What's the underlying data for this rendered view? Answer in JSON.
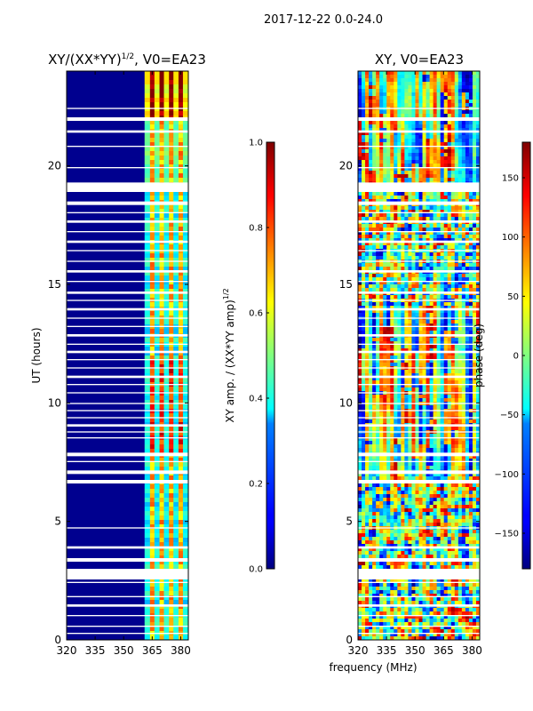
{
  "suptitle": "2017-12-22 0.0-24.0",
  "xlabel_shared": "frequency (MHz)",
  "colors": {
    "amp_background": "#00008f",
    "gap": "#ffffff",
    "frame": "#000000"
  },
  "chart_data": [
    {
      "type": "heatmap",
      "title_prefix": "XY/(XX*YY)",
      "title_sup": "1/2",
      "title_suffix": ", V0=EA23",
      "xlabel": "",
      "ylabel": "UT (hours)",
      "xlim": [
        320,
        384
      ],
      "ylim": [
        0,
        24
      ],
      "xticks": [
        320,
        335,
        350,
        365,
        380
      ],
      "yticks": [
        0,
        5,
        10,
        15,
        20
      ],
      "colormap": "jet",
      "colorbar": {
        "label_prefix": "XY amp. / (XX*YY amp)",
        "label_sup": "1/2",
        "range": [
          0,
          1
        ],
        "ticks": [
          "0.0",
          "0.2",
          "0.4",
          "0.6",
          "0.8",
          "1.0"
        ]
      },
      "active_band_mhz": [
        361,
        384
      ],
      "active_channel_centers_mhz": [
        365,
        370,
        375,
        380
      ],
      "data_gaps_ut_hours": [
        [
          0.25,
          0.3
        ],
        [
          0.55,
          0.6
        ],
        [
          1.0,
          1.05
        ],
        [
          1.4,
          1.5
        ],
        [
          1.8,
          1.85
        ],
        [
          2.4,
          2.45
        ],
        [
          2.55,
          3.0
        ],
        [
          3.3,
          3.45
        ],
        [
          3.85,
          3.95
        ],
        [
          4.7,
          4.75
        ],
        [
          6.6,
          6.75
        ],
        [
          7.0,
          7.15
        ],
        [
          7.5,
          7.55
        ],
        [
          7.75,
          7.9
        ],
        [
          8.5,
          8.55
        ],
        [
          8.75,
          8.8
        ],
        [
          9.0,
          9.1
        ],
        [
          9.35,
          9.4
        ],
        [
          9.65,
          9.7
        ],
        [
          9.95,
          10.0
        ],
        [
          10.4,
          10.45
        ],
        [
          10.75,
          10.8
        ],
        [
          11.05,
          11.15
        ],
        [
          11.45,
          11.5
        ],
        [
          11.8,
          11.85
        ],
        [
          12.1,
          12.2
        ],
        [
          12.45,
          12.5
        ],
        [
          12.8,
          12.9
        ],
        [
          13.2,
          13.25
        ],
        [
          13.55,
          13.6
        ],
        [
          13.9,
          14.0
        ],
        [
          14.3,
          14.35
        ],
        [
          14.6,
          14.7
        ],
        [
          15.1,
          15.15
        ],
        [
          15.5,
          15.6
        ],
        [
          15.95,
          16.0
        ],
        [
          16.4,
          16.45
        ],
        [
          16.75,
          16.85
        ],
        [
          17.2,
          17.25
        ],
        [
          17.6,
          17.7
        ],
        [
          18.0,
          18.05
        ],
        [
          18.35,
          18.5
        ],
        [
          18.9,
          19.3
        ],
        [
          19.9,
          19.95
        ],
        [
          20.8,
          20.85
        ],
        [
          21.4,
          21.5
        ],
        [
          21.9,
          22.05
        ],
        [
          22.4,
          22.45
        ]
      ]
    },
    {
      "type": "heatmap",
      "title": "XY, V0=EA23",
      "xlabel": "frequency (MHz)",
      "ylabel": "",
      "xlim": [
        320,
        384
      ],
      "ylim": [
        0,
        24
      ],
      "xticks": [
        320,
        335,
        350,
        365,
        380
      ],
      "yticks": [
        0,
        5,
        10,
        15,
        20
      ],
      "colormap": "jet",
      "colorbar": {
        "label": "phase (deg)",
        "range": [
          -180,
          180
        ],
        "ticks": [
          "150",
          "100",
          "50",
          "0",
          "−50",
          "−100",
          "−150"
        ]
      },
      "data_gaps_ut_hours": [
        [
          0.25,
          0.3
        ],
        [
          0.55,
          0.6
        ],
        [
          1.0,
          1.05
        ],
        [
          1.4,
          1.5
        ],
        [
          1.8,
          1.85
        ],
        [
          2.4,
          2.45
        ],
        [
          2.55,
          3.0
        ],
        [
          3.3,
          3.45
        ],
        [
          3.85,
          3.95
        ],
        [
          4.7,
          4.75
        ],
        [
          6.6,
          6.75
        ],
        [
          7.0,
          7.15
        ],
        [
          7.5,
          7.55
        ],
        [
          7.75,
          7.9
        ],
        [
          8.5,
          8.55
        ],
        [
          8.75,
          8.8
        ],
        [
          9.0,
          9.1
        ],
        [
          9.35,
          9.4
        ],
        [
          9.65,
          9.7
        ],
        [
          9.95,
          10.0
        ],
        [
          10.4,
          10.45
        ],
        [
          10.75,
          10.8
        ],
        [
          11.05,
          11.15
        ],
        [
          11.45,
          11.5
        ],
        [
          11.8,
          11.85
        ],
        [
          12.1,
          12.2
        ],
        [
          12.45,
          12.5
        ],
        [
          12.8,
          12.9
        ],
        [
          13.2,
          13.25
        ],
        [
          13.55,
          13.6
        ],
        [
          13.9,
          14.0
        ],
        [
          14.3,
          14.35
        ],
        [
          14.6,
          14.7
        ],
        [
          15.1,
          15.15
        ],
        [
          15.5,
          15.6
        ],
        [
          15.95,
          16.0
        ],
        [
          16.4,
          16.45
        ],
        [
          16.75,
          16.85
        ],
        [
          17.2,
          17.25
        ],
        [
          17.6,
          17.7
        ],
        [
          18.0,
          18.05
        ],
        [
          18.35,
          18.5
        ],
        [
          18.9,
          19.3
        ],
        [
          19.9,
          19.95
        ],
        [
          20.8,
          20.85
        ],
        [
          21.4,
          21.5
        ],
        [
          21.9,
          22.05
        ],
        [
          22.4,
          22.45
        ]
      ]
    }
  ]
}
